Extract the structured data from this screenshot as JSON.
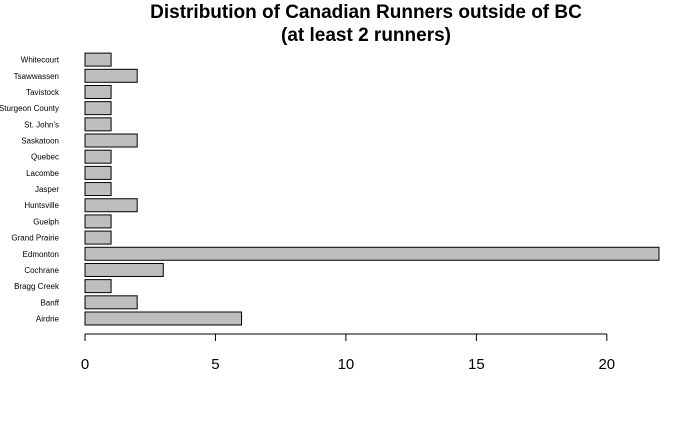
{
  "chart_data": {
    "type": "bar",
    "orientation": "horizontal",
    "title": "Distribution of Canadian Runners outside of BC",
    "subtitle": "(at least 2 runners)",
    "xlabel": "",
    "ylabel": "",
    "categories": [
      "Airdrie",
      "Banff",
      "Bragg Creek",
      "Cochrane",
      "Edmonton",
      "Grand Prairie",
      "Guelph",
      "Huntsville",
      "Jasper",
      "Lacombe",
      "Quebec",
      "Saskatoon",
      "St. John's",
      "Sturgeon County",
      "Tavistock",
      "Tsawwassen",
      "Whitecourt"
    ],
    "values": [
      6,
      2,
      1,
      3,
      22,
      1,
      1,
      2,
      1,
      1,
      1,
      2,
      1,
      1,
      1,
      2,
      1
    ],
    "xlim": [
      0,
      22
    ],
    "xticks": [
      0,
      5,
      10,
      15,
      20
    ],
    "grid": false,
    "colors": {
      "bar_fill": "#bebebe",
      "bar_stroke": "#000000"
    }
  }
}
